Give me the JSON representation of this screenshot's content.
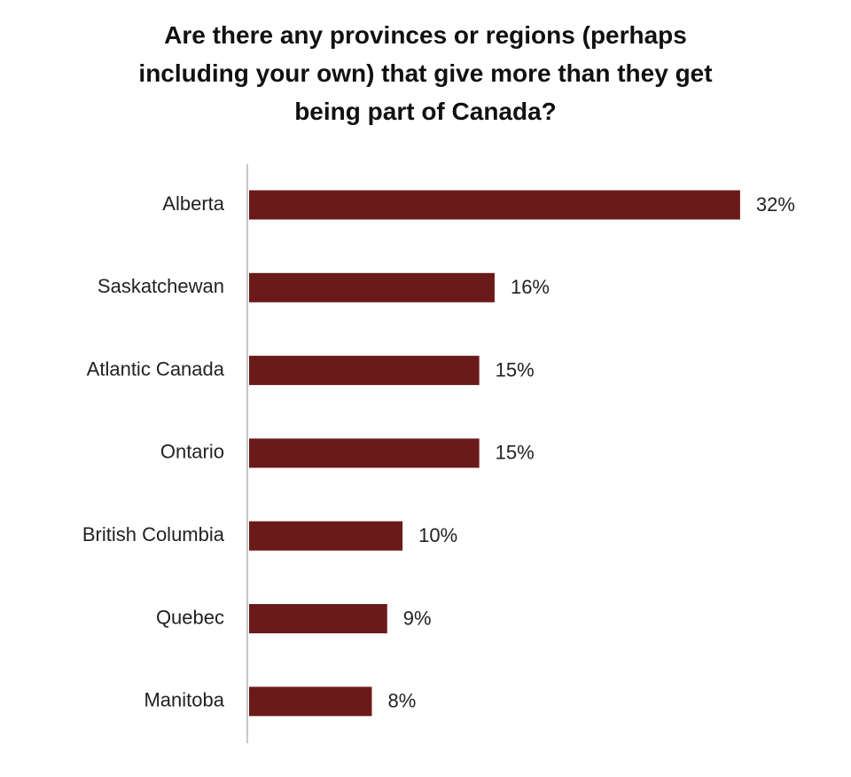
{
  "chart_data": {
    "type": "bar",
    "orientation": "horizontal",
    "title": "Are there any provinces or regions (perhaps including your own) that give more than they get being part of Canada?",
    "categories": [
      "Alberta",
      "Saskatchewan",
      "Atlantic Canada",
      "Ontario",
      "British Columbia",
      "Quebec",
      "Manitoba"
    ],
    "values": [
      32,
      16,
      15,
      15,
      10,
      9,
      8
    ],
    "value_labels": [
      "32%",
      "16%",
      "15%",
      "15%",
      "10%",
      "9%",
      "8%"
    ],
    "color": "#6b1a1a"
  }
}
